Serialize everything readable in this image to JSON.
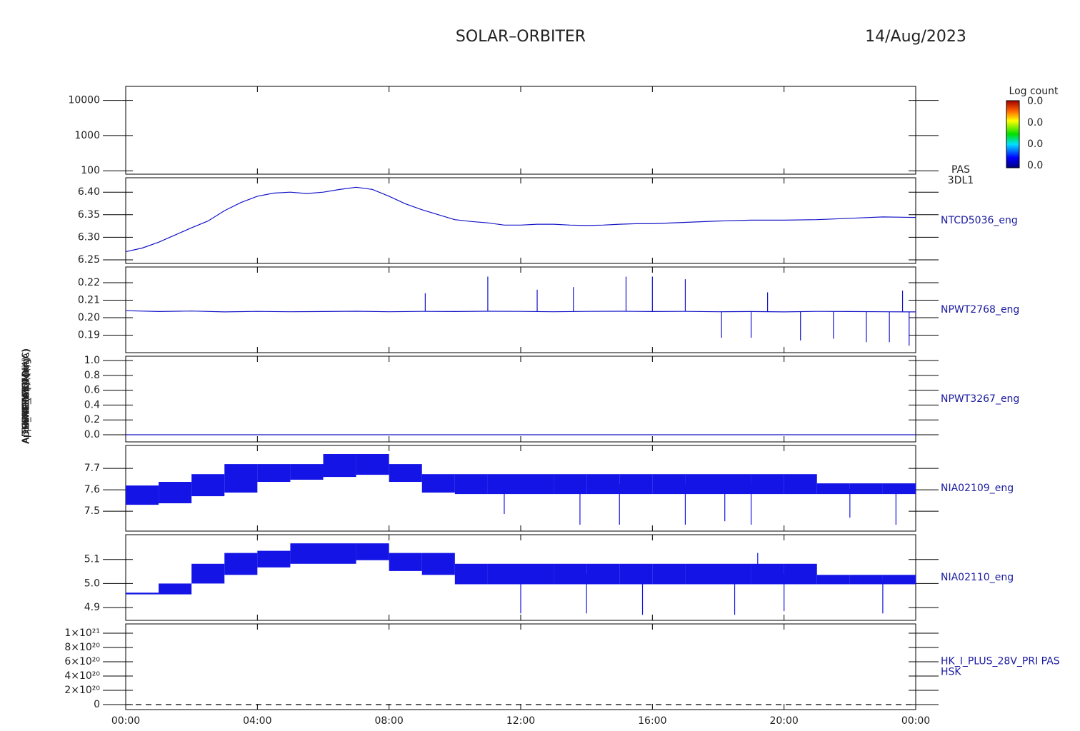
{
  "header": {
    "title": "SOLAR–ORBITER",
    "date": "14/Aug/2023"
  },
  "time_axis": {
    "xlim": [
      0,
      24
    ],
    "xticks": [
      {
        "value": 0,
        "label": "00:00"
      },
      {
        "value": 4,
        "label": "04:00"
      },
      {
        "value": 8,
        "label": "08:00"
      },
      {
        "value": 12,
        "label": "12:00"
      },
      {
        "value": 16,
        "label": "16:00"
      },
      {
        "value": 20,
        "label": "20:00"
      },
      {
        "value": 24,
        "label": "00:00"
      }
    ]
  },
  "colorbar": {
    "title": "Log count",
    "labels": [
      "0.0",
      "0.0",
      "0.0",
      "0.0"
    ]
  },
  "chart_data": [
    {
      "type": "spectrogram",
      "ylabel": "E (eV)",
      "label": [
        "PAS",
        "3DL1"
      ],
      "log": true,
      "ylim": [
        80,
        25000
      ],
      "yticks": [
        100,
        1000,
        10000
      ]
    },
    {
      "type": "line",
      "ylabel": "Approx Temp (DegC)",
      "label": [
        "NTCD5036_eng"
      ],
      "color": "#1414c8",
      "ylim": [
        6.242,
        6.432
      ],
      "yticks": [
        {
          "value": 6.4,
          "label": "6.40"
        },
        6.35,
        {
          "value": 6.3,
          "label": "6.30"
        },
        6.25
      ],
      "x": [
        0,
        0.5,
        1,
        1.5,
        2,
        2.5,
        3,
        3.5,
        4,
        4.5,
        5,
        5.5,
        6,
        6.5,
        7,
        7.5,
        8,
        8.5,
        9,
        9.5,
        10,
        10.5,
        11,
        11.5,
        12,
        12.5,
        13,
        13.5,
        14,
        14.5,
        15,
        15.5,
        16,
        17,
        18,
        19,
        20,
        21,
        22,
        23,
        24
      ],
      "values": [
        6.268,
        6.276,
        6.289,
        6.305,
        6.321,
        6.336,
        6.359,
        6.377,
        6.391,
        6.398,
        6.4,
        6.397,
        6.4,
        6.406,
        6.411,
        6.406,
        6.391,
        6.374,
        6.361,
        6.35,
        6.339,
        6.335,
        6.332,
        6.327,
        6.327,
        6.329,
        6.329,
        6.327,
        6.326,
        6.327,
        6.329,
        6.33,
        6.33,
        6.333,
        6.336,
        6.338,
        6.338,
        6.339,
        6.342,
        6.345,
        6.344
      ]
    },
    {
      "type": "line",
      "ylabel": "SWA-EAS1 (V)",
      "label": [
        "NPWT2768_eng"
      ],
      "color": "#1414c8",
      "ylim": [
        0.18,
        0.229
      ],
      "yticks": [
        0.22,
        0.21,
        {
          "value": 0.2,
          "label": "0.20"
        },
        0.19
      ],
      "x": [
        0,
        1,
        2,
        3,
        4,
        5,
        6,
        7,
        8,
        9,
        10,
        11,
        12,
        13,
        14,
        15,
        16,
        17,
        18,
        19,
        20,
        21,
        22,
        23,
        24
      ],
      "values": [
        0.204,
        0.2035,
        0.2038,
        0.2033,
        0.2036,
        0.2034,
        0.2035,
        0.2037,
        0.2034,
        0.2036,
        0.2035,
        0.2037,
        0.2036,
        0.2034,
        0.2036,
        0.2037,
        0.2035,
        0.2036,
        0.2034,
        0.2035,
        0.2033,
        0.2036,
        0.2035,
        0.2034,
        0.2033
      ],
      "spikes": {
        "x": [
          9.1,
          11.0,
          12.5,
          13.6,
          15.2,
          16.0,
          17.0,
          18.1,
          19.0,
          19.5,
          20.5,
          21.5,
          22.5,
          23.2,
          23.6,
          23.8
        ],
        "values": [
          0.214,
          0.2235,
          0.216,
          0.2175,
          0.2235,
          0.2235,
          0.222,
          0.1885,
          0.1885,
          0.2145,
          0.187,
          0.188,
          0.186,
          0.186,
          0.2155,
          0.184
        ]
      }
    },
    {
      "type": "line",
      "ylabel": "THERM_CA4 (nA)",
      "label": [
        "NPWT3267_eng"
      ],
      "color": "#1414c8",
      "ylim": [
        -0.096,
        1.058
      ],
      "yticks": [
        {
          "value": 0,
          "label": "0.0"
        },
        0.2,
        0.4,
        0.6,
        0.8,
        {
          "value": 1,
          "label": "1.0"
        }
      ],
      "x": [
        0,
        24
      ],
      "values": [
        0,
        0
      ]
    },
    {
      "type": "band",
      "ylabel": "FORMHLR (Mon)",
      "label": [
        "NIA02109_eng"
      ],
      "color": "#1414e6",
      "ylim": [
        7.407,
        7.807
      ],
      "yticks": [
        7.7,
        7.6,
        7.5
      ],
      "bins": [
        0,
        1,
        2,
        3,
        4,
        5,
        6,
        7,
        8,
        9,
        10,
        11,
        12,
        13,
        14,
        15,
        16,
        17,
        18,
        19,
        20,
        21,
        22,
        23,
        24
      ],
      "low": [
        7.53,
        7.537,
        7.57,
        7.587,
        7.637,
        7.647,
        7.66,
        7.67,
        7.637,
        7.587,
        7.58,
        7.58,
        7.58,
        7.58,
        7.58,
        7.58,
        7.58,
        7.58,
        7.58,
        7.58,
        7.58,
        7.58,
        7.58,
        7.58
      ],
      "high": [
        7.62,
        7.637,
        7.673,
        7.72,
        7.72,
        7.72,
        7.767,
        7.767,
        7.72,
        7.673,
        7.673,
        7.673,
        7.673,
        7.673,
        7.673,
        7.673,
        7.673,
        7.673,
        7.673,
        7.673,
        7.673,
        7.63,
        7.63,
        7.63
      ],
      "spikes": {
        "x": [
          11.5,
          13.8,
          15.0,
          17.0,
          18.2,
          19.0,
          22.0,
          23.4
        ],
        "values": [
          7.487,
          7.437,
          7.437,
          7.437,
          7.453,
          7.437,
          7.47,
          7.437
        ]
      }
    },
    {
      "type": "band",
      "ylabel": "IMON (nA)",
      "label": [
        "NIA02110_eng"
      ],
      "color": "#1414e6",
      "ylim": [
        4.847,
        5.203
      ],
      "yticks": [
        5.1,
        {
          "value": 5,
          "label": "5.0"
        },
        4.9
      ],
      "bins": [
        0,
        1,
        2,
        3,
        4,
        5,
        6,
        7,
        8,
        9,
        10,
        11,
        12,
        13,
        14,
        15,
        16,
        17,
        18,
        19,
        20,
        21,
        22,
        23,
        24
      ],
      "low": [
        4.955,
        4.955,
        5.0,
        5.036,
        5.067,
        5.082,
        5.082,
        5.097,
        5.052,
        5.036,
        4.997,
        4.997,
        4.997,
        4.997,
        4.997,
        4.997,
        4.997,
        4.997,
        4.997,
        4.997,
        4.997,
        4.997,
        4.997,
        4.997
      ],
      "high": [
        4.962,
        5.0,
        5.082,
        5.127,
        5.136,
        5.167,
        5.167,
        5.167,
        5.127,
        5.127,
        5.082,
        5.082,
        5.082,
        5.082,
        5.082,
        5.082,
        5.082,
        5.082,
        5.082,
        5.082,
        5.082,
        5.036,
        5.036,
        5.036
      ],
      "spikes": {
        "x": [
          12,
          14,
          15.7,
          18.5,
          19.2,
          20,
          23
        ],
        "values": [
          4.876,
          4.876,
          4.87,
          4.87,
          5.127,
          4.885,
          4.876
        ]
      }
    },
    {
      "type": "line",
      "ylabel": "ADM_HK_IMON (mA)",
      "label": [
        "HK_I_PLUS_28V_PRI PAS",
        "HSK"
      ],
      "color": "#000000",
      "dashed": true,
      "ylim": [
        -7e+19,
        1.13e+21
      ],
      "yticks": [
        0,
        {
          "value": 2e+20,
          "label": "2×10²⁰"
        },
        {
          "value": 4e+20,
          "label": "4×10²⁰"
        },
        {
          "value": 6e+20,
          "label": "6×10²⁰"
        },
        {
          "value": 8e+20,
          "label": "8×10²⁰"
        },
        {
          "value": 1e+21,
          "label": "1×10²¹"
        }
      ],
      "x": [
        0,
        24
      ],
      "values": [
        0,
        0
      ]
    }
  ]
}
